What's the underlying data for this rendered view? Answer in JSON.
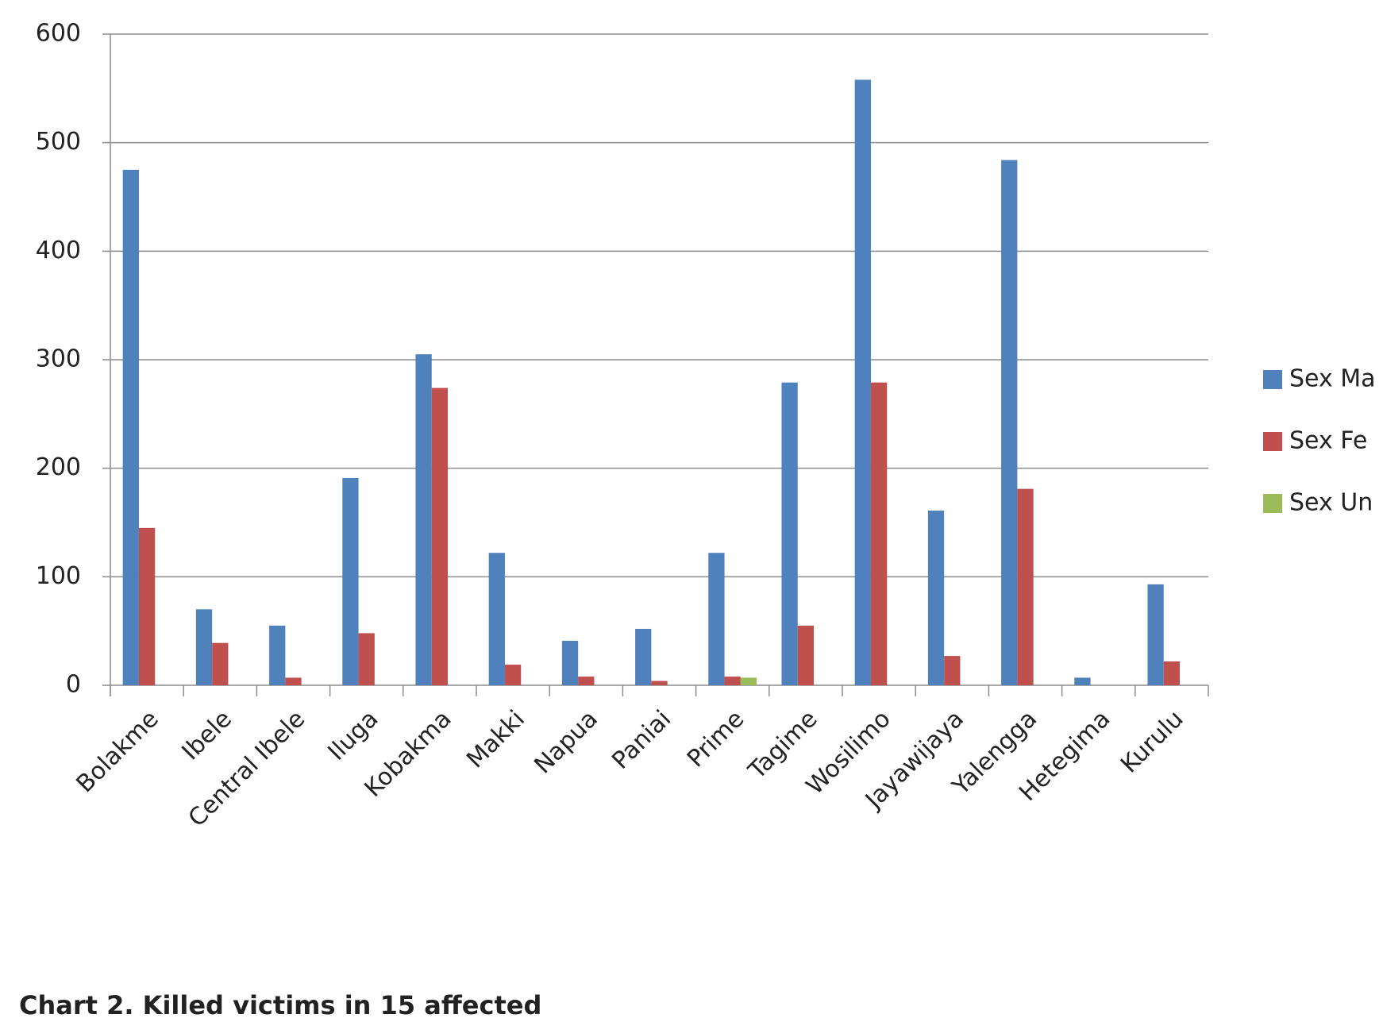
{
  "chart_data": {
    "type": "bar",
    "title": "Chart 2. Killed victims in 15 affected",
    "categories": [
      "Bolakme",
      "Ibele",
      "Central Ibele",
      "Iluga",
      "Kobakma",
      "Makki",
      "Napua",
      "Paniai",
      "Prime",
      "Tagime",
      "Wosilimo",
      "Jayawijaya",
      "Yalengga",
      "Hetegima",
      "Kurulu"
    ],
    "series": [
      {
        "name": "Sex Ma",
        "color": "#4f81bd",
        "values": [
          475,
          70,
          55,
          191,
          305,
          122,
          41,
          52,
          122,
          279,
          558,
          161,
          484,
          7,
          93
        ]
      },
      {
        "name": "Sex Fe",
        "color": "#c0504d",
        "values": [
          145,
          39,
          7,
          48,
          274,
          19,
          8,
          4,
          8,
          55,
          279,
          27,
          181,
          0,
          22
        ]
      },
      {
        "name": "Sex Un",
        "color": "#9bbb59",
        "values": [
          0,
          0,
          0,
          0,
          0,
          0,
          0,
          0,
          7,
          0,
          0,
          0,
          0,
          0,
          0
        ]
      }
    ],
    "ylim": [
      0,
      600
    ],
    "yticks": [
      0,
      100,
      200,
      300,
      400,
      500,
      600
    ],
    "grid": true,
    "legend": "right"
  }
}
